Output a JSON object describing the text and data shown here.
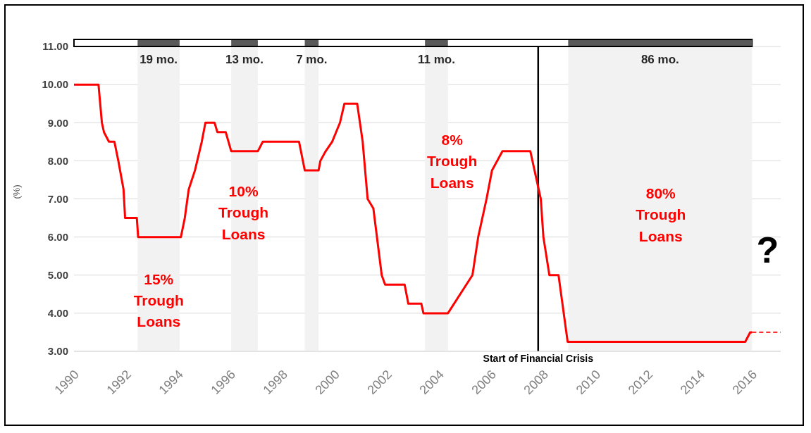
{
  "chart_data": {
    "type": "line",
    "ylabel": "(%)",
    "xlim": [
      1990,
      2017.1
    ],
    "xticks": [
      1990,
      1992,
      1994,
      1996,
      1998,
      2000,
      2002,
      2004,
      2006,
      2008,
      2010,
      2012,
      2014,
      2016
    ],
    "ylim": [
      3,
      11
    ],
    "yticks": [
      {
        "value": 3,
        "label": "3.00"
      },
      {
        "value": 4,
        "label": "4.00"
      },
      {
        "value": 5,
        "label": "5.00"
      },
      {
        "value": 6,
        "label": "6.00"
      },
      {
        "value": 7,
        "label": "7.00"
      },
      {
        "value": 8,
        "label": "8.00"
      },
      {
        "value": 9,
        "label": "9.00"
      },
      {
        "value": 10,
        "label": "10.00"
      },
      {
        "value": 11,
        "label": "11.00"
      }
    ],
    "grid": "y",
    "series": [
      {
        "color": "#ff0000",
        "line_style": "solid",
        "x": [
          1990,
          1990.94,
          1991.07,
          1991.15,
          1991.34,
          1991.55,
          1991.7,
          1991.9,
          1991.96,
          1992.41,
          1992.46,
          1994.1,
          1994.25,
          1994.4,
          1994.64,
          1994.9,
          1995.04,
          1995.39,
          1995.5,
          1995.82,
          1996.03,
          1997.05,
          1997.24,
          1998.63,
          1998.85,
          1999.38,
          1999.45,
          1999.65,
          1999.9,
          2000.05,
          2000.2,
          2000.37,
          2000.86,
          2001.07,
          2001.26,
          2001.48,
          2001.8,
          2001.93,
          2002.68,
          2002.82,
          2003.32,
          2003.4,
          2004.34,
          2005.28,
          2005.5,
          2005.82,
          2006.03,
          2006.43,
          2007.5,
          2007.9,
          2008.0,
          2008.23,
          2008.58,
          2008.93,
          2015.74,
          2015.93,
          2016.0
        ],
        "values": [
          10,
          10,
          9,
          8.75,
          8.5,
          8.5,
          8,
          7.25,
          6.5,
          6.5,
          6,
          6,
          6.5,
          7.25,
          7.75,
          8.5,
          9,
          9,
          8.75,
          8.75,
          8.25,
          8.25,
          8.5,
          8.5,
          7.75,
          7.75,
          8,
          8.25,
          8.5,
          8.75,
          9,
          9.5,
          9.5,
          8.5,
          7,
          6.75,
          5,
          4.75,
          4.75,
          4.25,
          4.25,
          4,
          4,
          5,
          6,
          7,
          7.75,
          8.25,
          8.25,
          7,
          6,
          5,
          5,
          3.25,
          3.25,
          3.5,
          3.5
        ]
      },
      {
        "color": "#ff0000",
        "line_style": "dashed",
        "x": [
          2016.0,
          2017.1
        ],
        "values": [
          3.5,
          3.5
        ]
      }
    ],
    "bands": [
      {
        "axis": "x",
        "from": 1992.44,
        "to": 1994.05,
        "label": "19 mo.",
        "color": "#f2f2f2"
      },
      {
        "axis": "x",
        "from": 1996.03,
        "to": 1997.05,
        "label": "13 mo.",
        "color": "#f2f2f2"
      },
      {
        "axis": "x",
        "from": 1998.85,
        "to": 1999.38,
        "label": "7 mo.",
        "color": "#f2f2f2"
      },
      {
        "axis": "x",
        "from": 2003.46,
        "to": 2004.34,
        "label": "11 mo.",
        "color": "#f2f2f2"
      },
      {
        "axis": "x",
        "from": 2008.95,
        "to": 2016.0,
        "label": "86 mo.",
        "color": "#f2f2f2"
      }
    ],
    "ref_lines": [
      {
        "axis": "x",
        "value": 2007.8,
        "label": "Start of Financial Crisis",
        "color": "#000000"
      }
    ],
    "annotations": [
      "15% Trough Loans",
      "10% Trough Loans",
      "8% Trough Loans",
      "80% Trough Loans",
      "?"
    ]
  }
}
